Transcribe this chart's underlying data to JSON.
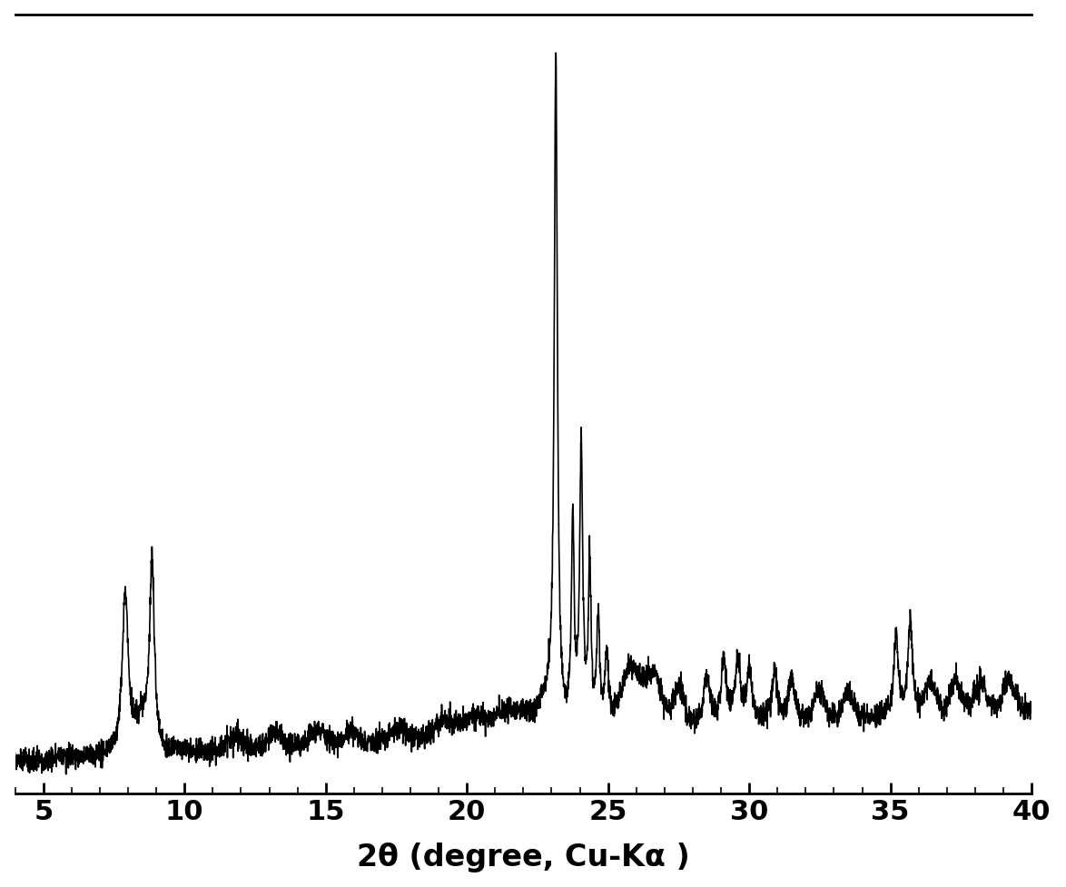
{
  "xlabel": "2θ (degree, Cu-Kα )",
  "xlim": [
    4,
    40
  ],
  "ylim": [
    0,
    1.05
  ],
  "xticks": [
    5,
    10,
    15,
    20,
    25,
    30,
    35,
    40
  ],
  "background_color": "#ffffff",
  "line_color": "#000000",
  "line_width": 1.2,
  "xlabel_fontsize": 24,
  "tick_fontsize": 22,
  "tick_fontweight": "bold",
  "xlabel_fontweight": "bold"
}
